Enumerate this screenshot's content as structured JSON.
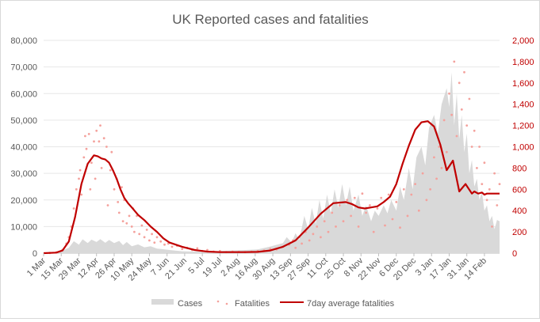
{
  "chart_data": {
    "type": "area",
    "title": "UK Reported cases and fatalities",
    "x_tick_labels": [
      "1 Mar",
      "15 Mar",
      "29 Mar",
      "12 Apr",
      "26 Apr",
      "10 May",
      "24 May",
      "7 Jun",
      "21 Jun",
      "5 Jul",
      "19 Jul",
      "2 Aug",
      "16 Aug",
      "30 Aug",
      "13 Sep",
      "27 Sep",
      "11 Oct",
      "25 Oct",
      "8 Nov",
      "22 Nov",
      "6 Dec",
      "20 Dec",
      "3 Jan",
      "17 Jan",
      "31 Jan",
      "14 Feb"
    ],
    "x_range_days": [
      0,
      362
    ],
    "y_left": {
      "range": [
        0,
        80000
      ],
      "ticks": [
        "0",
        "10,000",
        "20,000",
        "30,000",
        "40,000",
        "50,000",
        "60,000",
        "70,000",
        "80,000"
      ]
    },
    "y_right": {
      "range": [
        0,
        2000
      ],
      "ticks": [
        "0",
        "200",
        "400",
        "600",
        "800",
        "1,000",
        "1,200",
        "1,400",
        "1,600",
        "1,800",
        "2,000"
      ]
    },
    "legend": {
      "position": "bottom",
      "items": [
        "Cases",
        "Fatalities",
        "7day average fatalities"
      ]
    },
    "gridlines": true,
    "colors": {
      "cases": "#d9d9d9",
      "fatalities": "#f4a19c",
      "avg": "#c00000"
    },
    "series": [
      {
        "name": "Cases",
        "axis": "left",
        "x": [
          0,
          10,
          20,
          24,
          28,
          31,
          35,
          38,
          42,
          45,
          49,
          52,
          56,
          60,
          63,
          66,
          70,
          75,
          80,
          85,
          90,
          95,
          100,
          110,
          120,
          130,
          140,
          150,
          160,
          170,
          180,
          190,
          193,
          197,
          200,
          203,
          207,
          210,
          213,
          216,
          219,
          222,
          225,
          228,
          231,
          234,
          237,
          240,
          243,
          246,
          250,
          253,
          256,
          260,
          263,
          266,
          270,
          273,
          276,
          280,
          283,
          286,
          290,
          293,
          296,
          300,
          303,
          306,
          310,
          313,
          316,
          320,
          322,
          324,
          326,
          328,
          330,
          332,
          334,
          336,
          338,
          340,
          342,
          344,
          346,
          348,
          350,
          352,
          354,
          356,
          358,
          360,
          362
        ],
        "values": [
          10,
          100,
          2000,
          4500,
          3200,
          5200,
          3800,
          5100,
          4200,
          5300,
          3900,
          5000,
          3800,
          4600,
          3000,
          4200,
          2600,
          3300,
          2200,
          2600,
          1700,
          1500,
          1200,
          700,
          600,
          700,
          800,
          1000,
          1200,
          1400,
          2500,
          3800,
          6000,
          4000,
          7500,
          5000,
          14000,
          9000,
          17000,
          11000,
          20000,
          13000,
          22000,
          15000,
          24000,
          17000,
          26000,
          18000,
          25000,
          16000,
          22000,
          14000,
          18000,
          12000,
          16000,
          14000,
          18000,
          15000,
          20000,
          16000,
          25000,
          20000,
          32000,
          24000,
          36000,
          40000,
          33000,
          47000,
          52000,
          45000,
          56000,
          62000,
          55000,
          68000,
          48000,
          60000,
          43000,
          52000,
          38000,
          45000,
          30000,
          35000,
          25000,
          28000,
          20000,
          23000,
          16000,
          18000,
          12000,
          14000,
          9000,
          12500,
          12000
        ]
      },
      {
        "name": "Fatalities",
        "axis": "right",
        "x": [
          5,
          10,
          15,
          18,
          20,
          22,
          24,
          26,
          28,
          29,
          30,
          32,
          33,
          34,
          36,
          37,
          38,
          40,
          41,
          42,
          44,
          45,
          46,
          48,
          50,
          51,
          53,
          54,
          56,
          58,
          59,
          60,
          62,
          63,
          64,
          66,
          68,
          70,
          71,
          72,
          74,
          76,
          78,
          80,
          82,
          84,
          86,
          88,
          90,
          93,
          96,
          99,
          102,
          106,
          110,
          114,
          118,
          122,
          126,
          130,
          135,
          140,
          145,
          150,
          155,
          160,
          165,
          170,
          175,
          180,
          185,
          190,
          195,
          198,
          200,
          203,
          205,
          208,
          211,
          214,
          217,
          220,
          223,
          226,
          229,
          232,
          235,
          238,
          241,
          244,
          247,
          250,
          253,
          256,
          259,
          262,
          265,
          268,
          271,
          274,
          277,
          280,
          283,
          286,
          289,
          292,
          295,
          298,
          301,
          304,
          307,
          310,
          312,
          314,
          316,
          318,
          320,
          322,
          324,
          326,
          328,
          330,
          332,
          334,
          336,
          338,
          340,
          342,
          344,
          346,
          348,
          350,
          352,
          354,
          356,
          358,
          360,
          362
        ],
        "values": [
          2,
          8,
          30,
          90,
          150,
          250,
          420,
          600,
          700,
          780,
          550,
          900,
          1100,
          980,
          1120,
          600,
          850,
          1050,
          700,
          1150,
          1050,
          1200,
          800,
          1080,
          1000,
          450,
          780,
          950,
          600,
          700,
          480,
          380,
          620,
          300,
          500,
          280,
          350,
          250,
          420,
          200,
          350,
          180,
          260,
          150,
          220,
          120,
          180,
          100,
          150,
          110,
          80,
          90,
          60,
          70,
          40,
          50,
          30,
          45,
          20,
          30,
          15,
          20,
          10,
          15,
          12,
          10,
          14,
          20,
          25,
          40,
          35,
          60,
          80,
          120,
          50,
          150,
          90,
          200,
          120,
          180,
          250,
          150,
          300,
          200,
          380,
          250,
          450,
          300,
          500,
          350,
          520,
          250,
          560,
          380,
          450,
          200,
          420,
          520,
          260,
          550,
          320,
          480,
          240,
          600,
          350,
          550,
          650,
          400,
          750,
          500,
          600,
          900,
          700,
          1000,
          800,
          1250,
          950,
          1500,
          1300,
          1800,
          1100,
          1600,
          1350,
          1700,
          1200,
          1450,
          1000,
          1150,
          800,
          1000,
          650,
          850,
          500,
          600,
          250,
          750,
          450,
          650
        ]
      },
      {
        "name": "7day average fatalities",
        "axis": "right",
        "x": [
          0,
          10,
          15,
          20,
          25,
          30,
          35,
          40,
          43,
          46,
          49,
          52,
          55,
          58,
          61,
          64,
          67,
          70,
          75,
          80,
          85,
          90,
          95,
          100,
          110,
          120,
          130,
          140,
          150,
          160,
          170,
          180,
          190,
          200,
          210,
          220,
          230,
          240,
          245,
          250,
          255,
          260,
          265,
          270,
          275,
          280,
          285,
          290,
          295,
          300,
          305,
          310,
          315,
          320,
          325,
          330,
          335,
          340,
          342,
          345,
          348,
          350,
          352,
          355,
          357,
          359,
          361,
          362
        ],
        "values": [
          0,
          5,
          25,
          110,
          340,
          650,
          840,
          920,
          910,
          890,
          880,
          850,
          780,
          700,
          600,
          520,
          470,
          430,
          360,
          310,
          250,
          200,
          140,
          100,
          60,
          30,
          15,
          10,
          10,
          10,
          12,
          25,
          60,
          120,
          240,
          370,
          470,
          480,
          460,
          430,
          420,
          430,
          440,
          480,
          530,
          650,
          840,
          1010,
          1160,
          1230,
          1240,
          1190,
          1020,
          780,
          870,
          580,
          650,
          560,
          580,
          560,
          570,
          550,
          560,
          560,
          560,
          560,
          560,
          560
        ]
      }
    ]
  }
}
